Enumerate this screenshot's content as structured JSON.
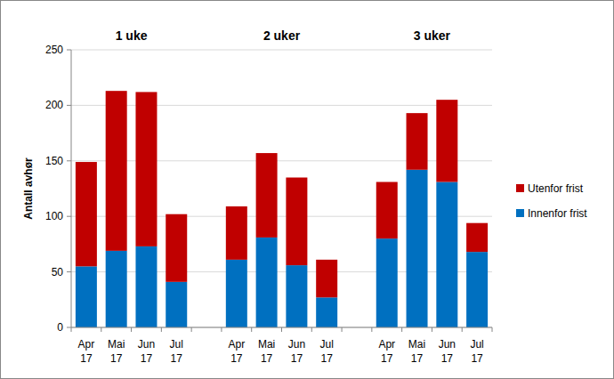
{
  "chart_data": {
    "type": "bar",
    "stacked": true,
    "grid": true,
    "legend": "right",
    "y_label": "Antall avhør",
    "groups": [
      "1 uke",
      "2 uker",
      "3 uker"
    ],
    "categories": [
      "Apr 17",
      "Mai 17",
      "Jun 17",
      "Jul 17",
      null,
      "Apr 17",
      "Mai 17",
      "Jun 17",
      "Jul 17",
      null,
      "Apr 17",
      "Mai 17",
      "Jun 17",
      "Jul 17"
    ],
    "series": [
      {
        "name": "Innenfor frist",
        "color": "#0070c0",
        "values": [
          55,
          69,
          73,
          41,
          null,
          61,
          81,
          56,
          27,
          null,
          80,
          142,
          131,
          68
        ]
      },
      {
        "name": "Utenfor frist",
        "color": "#c00000",
        "values": [
          94,
          144,
          139,
          61,
          null,
          48,
          76,
          79,
          34,
          null,
          51,
          51,
          74,
          26
        ]
      }
    ],
    "ylim": [
      0,
      250
    ],
    "yticks": [
      0,
      50,
      100,
      150,
      200,
      250
    ]
  }
}
